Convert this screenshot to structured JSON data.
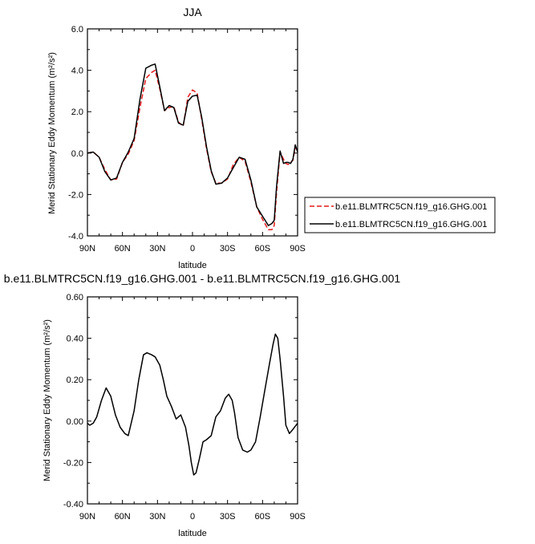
{
  "chart_data": [
    {
      "type": "line",
      "title": "JJA",
      "xlabel": "latitude",
      "ylabel": "Merid Stationary Eddy Momentum (m²/s²)",
      "x_ticks": [
        "90N",
        "60N",
        "30N",
        "0",
        "30S",
        "60S",
        "90S"
      ],
      "x_tick_values": [
        90,
        60,
        30,
        0,
        -30,
        -60,
        -90
      ],
      "xlim": [
        90,
        -90
      ],
      "ylim": [
        -4.0,
        6.0
      ],
      "y_ticks": [
        "-4.0",
        "-2.0",
        "0.0",
        "2.0",
        "4.0",
        "6.0"
      ],
      "y_tick_values": [
        -4,
        -2,
        0,
        2,
        4,
        6
      ],
      "legend_position": "right",
      "series": [
        {
          "name": "b.e11.BLMTRC5CN.f19_g16.GHG.001",
          "color": "#e41a1c",
          "style": "dashed",
          "x": [
            90,
            85,
            80,
            75,
            70,
            65,
            60,
            55,
            50,
            45,
            40,
            35,
            32,
            28,
            24,
            20,
            16,
            12,
            8,
            4,
            0,
            -4,
            -8,
            -12,
            -16,
            -20,
            -25,
            -30,
            -35,
            -40,
            -45,
            -50,
            -55,
            -60,
            -65,
            -68,
            -70,
            -72,
            -75,
            -78,
            -80,
            -82,
            -84,
            -86,
            -88,
            -90
          ],
          "y": [
            0.0,
            0.05,
            -0.2,
            -0.8,
            -1.3,
            -1.25,
            -0.45,
            -0.05,
            0.6,
            2.2,
            3.6,
            3.9,
            4.0,
            3.1,
            2.05,
            2.2,
            2.25,
            1.5,
            1.3,
            2.7,
            3.05,
            2.9,
            1.6,
            0.2,
            -0.9,
            -1.45,
            -1.45,
            -1.25,
            -0.55,
            -0.2,
            -0.4,
            -1.4,
            -2.6,
            -3.2,
            -3.7,
            -3.7,
            -3.5,
            -1.9,
            0.05,
            -0.3,
            -0.5,
            -0.55,
            -0.45,
            -0.35,
            0.3,
            0.05
          ]
        },
        {
          "name": "b.e11.BLMTRC5CN.f19_g16.GHG.001",
          "color": "#000000",
          "style": "solid",
          "x": [
            90,
            85,
            80,
            75,
            70,
            65,
            60,
            55,
            50,
            45,
            40,
            35,
            32,
            28,
            24,
            20,
            16,
            12,
            8,
            4,
            0,
            -4,
            -8,
            -12,
            -16,
            -20,
            -25,
            -30,
            -35,
            -40,
            -45,
            -50,
            -55,
            -60,
            -65,
            -68,
            -70,
            -72,
            -75,
            -78,
            -80,
            -82,
            -84,
            -86,
            -88,
            -90
          ],
          "y": [
            0.0,
            0.05,
            -0.2,
            -0.9,
            -1.3,
            -1.2,
            -0.45,
            0.05,
            0.7,
            2.6,
            4.1,
            4.25,
            4.3,
            3.2,
            2.05,
            2.3,
            2.2,
            1.45,
            1.35,
            2.5,
            2.75,
            2.8,
            1.7,
            0.3,
            -0.85,
            -1.5,
            -1.45,
            -1.2,
            -0.7,
            -0.2,
            -0.3,
            -1.3,
            -2.6,
            -3.05,
            -3.5,
            -3.4,
            -3.25,
            -1.6,
            0.1,
            -0.5,
            -0.45,
            -0.45,
            -0.5,
            -0.3,
            0.4,
            0.05
          ]
        }
      ]
    },
    {
      "type": "line",
      "title": "b.e11.BLMTRC5CN.f19_g16.GHG.001 - b.e11.BLMTRC5CN.f19_g16.GHG.001",
      "xlabel": "latitude",
      "ylabel": "Merid Stationary Eddy Momentum (m²/s²)",
      "x_ticks": [
        "90N",
        "60N",
        "30N",
        "0",
        "30S",
        "60S",
        "90S"
      ],
      "x_tick_values": [
        90,
        60,
        30,
        0,
        -30,
        -60,
        -90
      ],
      "xlim": [
        90,
        -90
      ],
      "ylim": [
        -0.4,
        0.6
      ],
      "y_ticks": [
        "-0.40",
        "-0.20",
        "0.00",
        "0.20",
        "0.40",
        "0.60"
      ],
      "y_tick_values": [
        -0.4,
        -0.2,
        0.0,
        0.2,
        0.4,
        0.6
      ],
      "series": [
        {
          "color": "#000000",
          "style": "solid",
          "x": [
            90,
            88,
            85,
            82,
            78,
            74,
            70,
            66,
            62,
            58,
            55,
            50,
            46,
            42,
            39,
            35,
            32,
            28,
            25,
            22,
            18,
            14,
            10,
            6,
            3,
            1,
            -1,
            -3,
            -6,
            -9,
            -12,
            -16,
            -20,
            -24,
            -28,
            -31,
            -34,
            -36,
            -39,
            -43,
            -47,
            -50,
            -54,
            -58,
            -62,
            -66,
            -69,
            -71,
            -73,
            -75,
            -78,
            -80,
            -83,
            -86,
            -90
          ],
          "y": [
            -0.01,
            -0.02,
            -0.01,
            0.02,
            0.1,
            0.16,
            0.12,
            0.03,
            -0.03,
            -0.06,
            -0.07,
            0.05,
            0.2,
            0.32,
            0.33,
            0.32,
            0.31,
            0.27,
            0.2,
            0.12,
            0.07,
            0.01,
            0.03,
            -0.03,
            -0.12,
            -0.2,
            -0.26,
            -0.25,
            -0.18,
            -0.1,
            -0.09,
            -0.07,
            0.02,
            0.05,
            0.11,
            0.13,
            0.1,
            0.04,
            -0.08,
            -0.14,
            -0.15,
            -0.14,
            -0.1,
            0.02,
            0.15,
            0.28,
            0.37,
            0.42,
            0.4,
            0.3,
            0.12,
            -0.02,
            -0.06,
            -0.04,
            -0.01
          ]
        }
      ]
    }
  ]
}
